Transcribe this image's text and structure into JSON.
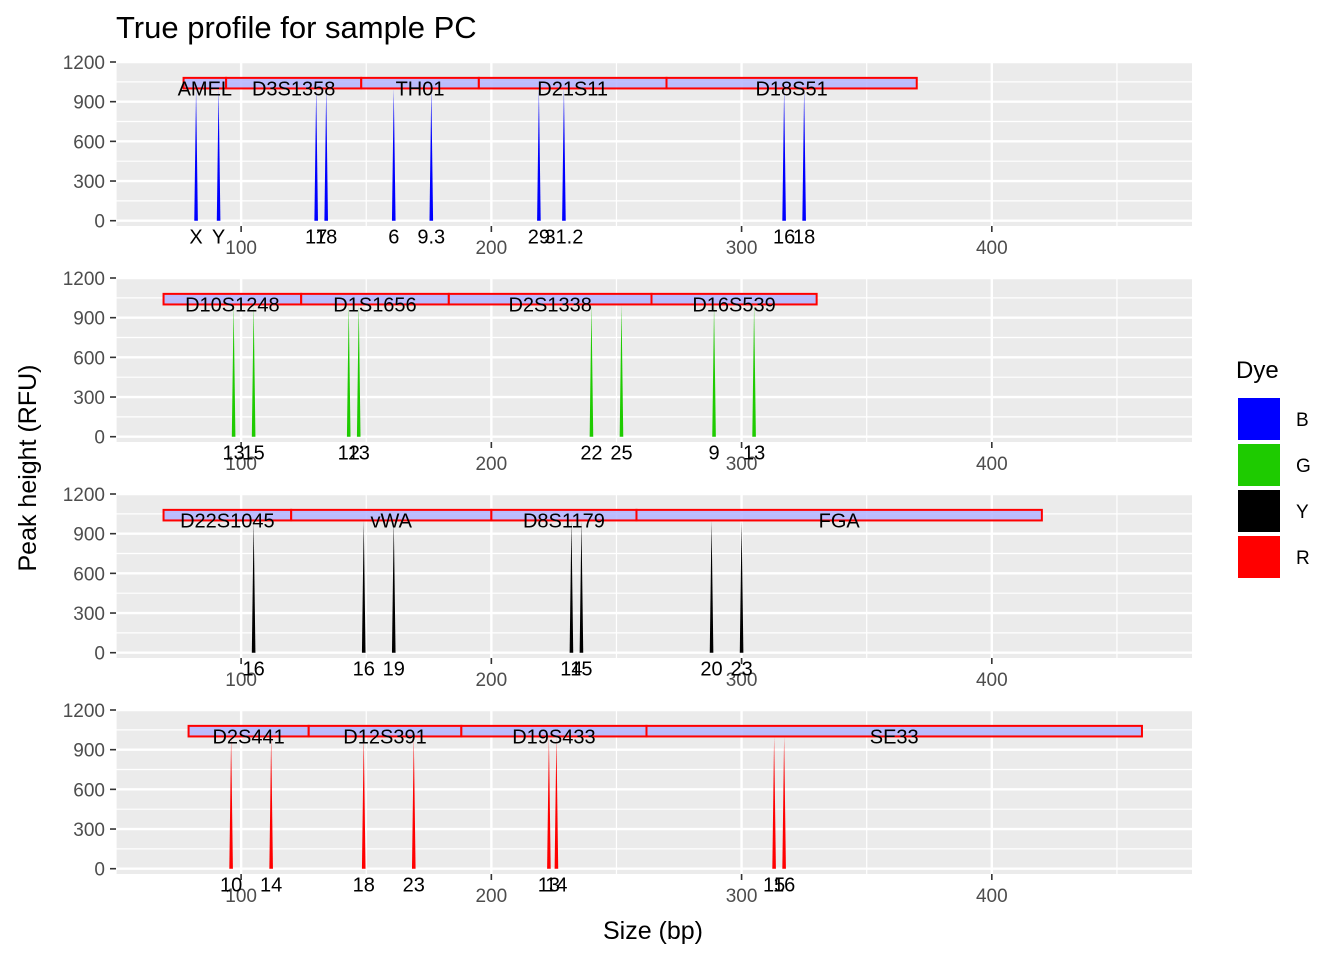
{
  "chart_data": {
    "type": "peak-profile",
    "title": "True profile for sample PC",
    "xlabel": "Size (bp)",
    "ylabel": "Peak height (RFU)",
    "xlim": [
      50,
      480
    ],
    "ylim": [
      -40,
      1200
    ],
    "x_ticks": [
      100,
      200,
      300,
      400
    ],
    "y_ticks": [
      0,
      300,
      600,
      900,
      1200
    ],
    "peak_height": 1000,
    "grid": true,
    "legend": {
      "title": "Dye",
      "position": "right",
      "entries": [
        {
          "label": "B",
          "color": "#0000ff"
        },
        {
          "label": "G",
          "color": "#1ecb00"
        },
        {
          "label": "Y",
          "color": "#000000"
        },
        {
          "label": "R",
          "color": "#ff0000"
        }
      ]
    },
    "panels": [
      {
        "dye": "B",
        "color": "#0000ff",
        "markers": [
          {
            "name": "AMEL",
            "start": 77,
            "end": 94
          },
          {
            "name": "D3S1358",
            "start": 94,
            "end": 148
          },
          {
            "name": "TH01",
            "start": 148,
            "end": 195
          },
          {
            "name": "D21S11",
            "start": 195,
            "end": 270
          },
          {
            "name": "D18S51",
            "start": 270,
            "end": 370
          }
        ],
        "peaks": [
          {
            "allele": "X",
            "size": 82
          },
          {
            "allele": "Y",
            "size": 91
          },
          {
            "allele": "17",
            "size": 130
          },
          {
            "allele": "18",
            "size": 134
          },
          {
            "allele": "6",
            "size": 161
          },
          {
            "allele": "9.3",
            "size": 176
          },
          {
            "allele": "29",
            "size": 219
          },
          {
            "allele": "31.2",
            "size": 229
          },
          {
            "allele": "16",
            "size": 317
          },
          {
            "allele": "18",
            "size": 325
          }
        ]
      },
      {
        "dye": "G",
        "color": "#1ecb00",
        "markers": [
          {
            "name": "D10S1248",
            "start": 69,
            "end": 124
          },
          {
            "name": "D1S1656",
            "start": 124,
            "end": 183
          },
          {
            "name": "D2S1338",
            "start": 183,
            "end": 264
          },
          {
            "name": "D16S539",
            "start": 264,
            "end": 330
          }
        ],
        "peaks": [
          {
            "allele": "13",
            "size": 97
          },
          {
            "allele": "15",
            "size": 105
          },
          {
            "allele": "12",
            "size": 143
          },
          {
            "allele": "13",
            "size": 147
          },
          {
            "allele": "22",
            "size": 240
          },
          {
            "allele": "25",
            "size": 252
          },
          {
            "allele": "9",
            "size": 289
          },
          {
            "allele": "13",
            "size": 305
          }
        ]
      },
      {
        "dye": "Y",
        "color": "#000000",
        "markers": [
          {
            "name": "D22S1045",
            "start": 69,
            "end": 120
          },
          {
            "name": "vWA",
            "start": 120,
            "end": 200
          },
          {
            "name": "D8S1179",
            "start": 200,
            "end": 258
          },
          {
            "name": "FGA",
            "start": 258,
            "end": 420
          }
        ],
        "peaks": [
          {
            "allele": "16",
            "size": 105
          },
          {
            "allele": "16",
            "size": 149
          },
          {
            "allele": "19",
            "size": 161
          },
          {
            "allele": "14",
            "size": 232
          },
          {
            "allele": "15",
            "size": 236
          },
          {
            "allele": "20",
            "size": 288
          },
          {
            "allele": "23",
            "size": 300
          }
        ]
      },
      {
        "dye": "R",
        "color": "#ff0000",
        "markers": [
          {
            "name": "D2S441",
            "start": 79,
            "end": 127
          },
          {
            "name": "D12S391",
            "start": 127,
            "end": 188
          },
          {
            "name": "D19S433",
            "start": 188,
            "end": 262
          },
          {
            "name": "SE33",
            "start": 262,
            "end": 460
          }
        ],
        "peaks": [
          {
            "allele": "10",
            "size": 96
          },
          {
            "allele": "14",
            "size": 112
          },
          {
            "allele": "18",
            "size": 149
          },
          {
            "allele": "23",
            "size": 169
          },
          {
            "allele": "13",
            "size": 223
          },
          {
            "allele": "14",
            "size": 226
          },
          {
            "allele": "15",
            "size": 313
          },
          {
            "allele": "16",
            "size": 317
          }
        ]
      }
    ]
  }
}
